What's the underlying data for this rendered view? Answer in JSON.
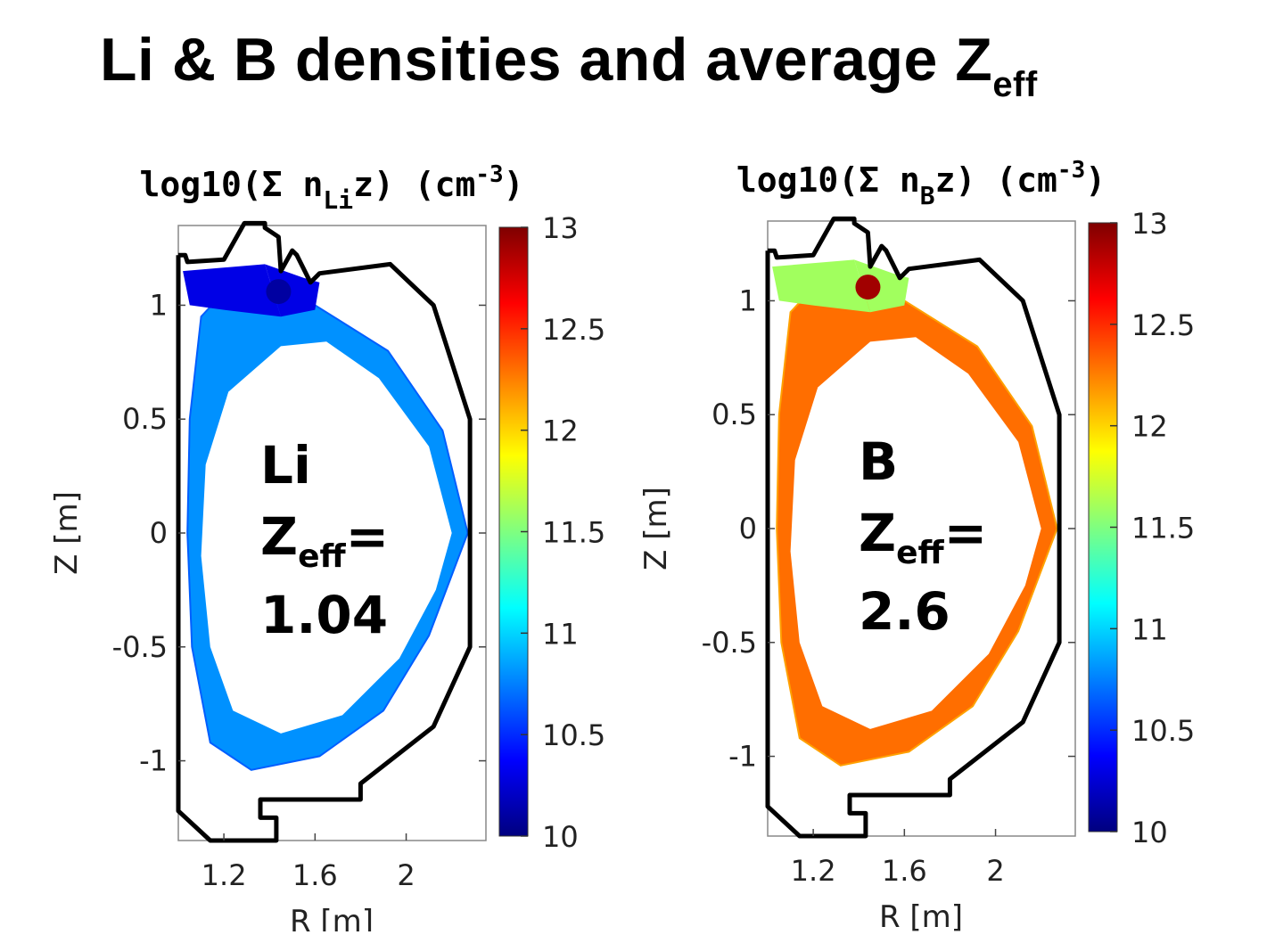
{
  "title": {
    "main": "Li & B densities and average Z",
    "sub": "eff"
  },
  "chart_data": [
    {
      "type": "heatmap",
      "title": {
        "prefix": "log10(Σ n",
        "species_sub": "Li",
        "mid": "z) (cm",
        "exp": "-3",
        "suffix": ")"
      },
      "xlabel": "R [m]",
      "ylabel": "Z [m]",
      "xlim": [
        1.0,
        2.35
      ],
      "ylim": [
        -1.35,
        1.35
      ],
      "xticks": [
        "1.2",
        "1.6",
        "2"
      ],
      "yticks": [
        "1",
        "0.5",
        "0",
        "-0.5",
        "-1"
      ],
      "colorbar": {
        "range": [
          10,
          13
        ],
        "ticks": [
          "13",
          "12.5",
          "12",
          "11.5",
          "11",
          "10.5",
          "10"
        ],
        "colormap": "jet"
      },
      "annotation": {
        "species": "Li",
        "zeff_main": "Z",
        "zeff_sub": "eff",
        "zeff_eq": "=",
        "value": "1.04"
      },
      "level": {
        "core_edge": 10.8,
        "divertor_leg": 10.3,
        "xpoint": 10.1
      }
    },
    {
      "type": "heatmap",
      "title": {
        "prefix": "log10(Σ n",
        "species_sub": "B",
        "mid": "z) (cm",
        "exp": "-3",
        "suffix": ")"
      },
      "xlabel": "R [m]",
      "ylabel": "Z [m]",
      "xlim": [
        1.0,
        2.35
      ],
      "ylim": [
        -1.35,
        1.35
      ],
      "xticks": [
        "1.2",
        "1.6",
        "2"
      ],
      "yticks": [
        "1",
        "0.5",
        "0",
        "-0.5",
        "-1"
      ],
      "colorbar": {
        "range": [
          10,
          13
        ],
        "ticks": [
          "13",
          "12.5",
          "12",
          "11.5",
          "11",
          "10.5",
          "10"
        ],
        "colormap": "jet"
      },
      "annotation": {
        "species": "B",
        "zeff_main": "Z",
        "zeff_sub": "eff",
        "zeff_eq": "=",
        "value": "2.6"
      },
      "level": {
        "core_edge": 12.3,
        "divertor_leg": 11.6,
        "xpoint": 12.9
      }
    }
  ]
}
